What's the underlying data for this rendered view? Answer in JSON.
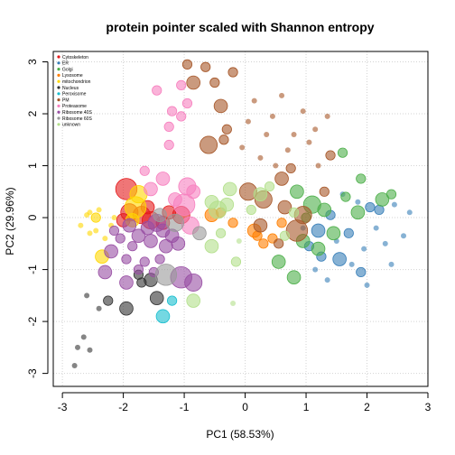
{
  "chart_data": {
    "type": "scatter",
    "title": "protein pointer scaled with Shannon entropy",
    "xlabel": "PC1 (58.53%)",
    "ylabel": "PC2 (29.96%)",
    "xlim": [
      -3.15,
      3.0
    ],
    "ylim": [
      -3.25,
      3.2
    ],
    "xticks": [
      -3,
      -2,
      -1,
      0,
      1,
      2,
      3
    ],
    "yticks": [
      -3,
      -2,
      -1,
      0,
      1,
      2,
      3
    ],
    "xtick_labels": [
      "-3",
      "-2",
      "-1",
      "0",
      "1",
      "2",
      "3"
    ],
    "ytick_labels": [
      "-3",
      "-2",
      "-1",
      "0",
      "1",
      "2",
      "3"
    ],
    "grid": true,
    "legend_position": "top-left",
    "point_opacity": 0.6,
    "series": [
      {
        "name": "Cytoskeleton",
        "color": "#E41A1C",
        "points": [
          {
            "x": -1.95,
            "y": 0.55,
            "s": 5
          },
          {
            "x": -1.7,
            "y": 0.05,
            "s": 4
          },
          {
            "x": -1.55,
            "y": -0.05,
            "s": 4
          },
          {
            "x": -1.9,
            "y": 0.1,
            "s": 4
          },
          {
            "x": -1.05,
            "y": 0.05,
            "s": 4
          },
          {
            "x": -1.35,
            "y": -0.1,
            "s": 3
          },
          {
            "x": -1.6,
            "y": 0.2,
            "s": 3
          },
          {
            "x": -2.0,
            "y": -0.05,
            "s": 3
          },
          {
            "x": -1.25,
            "y": 0.1,
            "s": 3
          }
        ]
      },
      {
        "name": "ER",
        "color": "#377EB8",
        "points": [
          {
            "x": 1.2,
            "y": -0.25,
            "s": 3
          },
          {
            "x": 1.4,
            "y": 0.05,
            "s": 2
          },
          {
            "x": 1.55,
            "y": -0.8,
            "s": 3
          },
          {
            "x": 1.9,
            "y": -1.05,
            "s": 2
          },
          {
            "x": 2.05,
            "y": 0.2,
            "s": 2
          },
          {
            "x": 1.25,
            "y": -0.75,
            "s": 2
          },
          {
            "x": 2.2,
            "y": 0.15,
            "s": 2
          },
          {
            "x": 1.7,
            "y": -0.3,
            "s": 2
          },
          {
            "x": 1.05,
            "y": -0.55,
            "s": 2
          },
          {
            "x": 1.85,
            "y": 0.3,
            "s": 1
          },
          {
            "x": 2.3,
            "y": -0.5,
            "s": 1
          },
          {
            "x": 1.6,
            "y": 0.45,
            "s": 1
          },
          {
            "x": 2.45,
            "y": 0.25,
            "s": 1
          },
          {
            "x": 1.95,
            "y": -0.6,
            "s": 1
          },
          {
            "x": 1.35,
            "y": -1.2,
            "s": 1
          },
          {
            "x": 2.6,
            "y": -0.35,
            "s": 1
          },
          {
            "x": 1.15,
            "y": -1.0,
            "s": 1
          },
          {
            "x": 2.0,
            "y": -1.3,
            "s": 1
          },
          {
            "x": 2.4,
            "y": -0.9,
            "s": 1
          },
          {
            "x": 1.75,
            "y": -0.9,
            "s": 1
          },
          {
            "x": 2.7,
            "y": 0.1,
            "s": 1
          },
          {
            "x": 0.95,
            "y": -0.2,
            "s": 1
          },
          {
            "x": 1.5,
            "y": -0.45,
            "s": 1
          },
          {
            "x": 2.15,
            "y": -0.2,
            "s": 1
          }
        ]
      },
      {
        "name": "Golgi",
        "color": "#4DAF4A",
        "points": [
          {
            "x": 1.1,
            "y": 0.25,
            "s": 4
          },
          {
            "x": 0.85,
            "y": 0.5,
            "s": 3
          },
          {
            "x": 0.55,
            "y": -0.85,
            "s": 3
          },
          {
            "x": 1.2,
            "y": -0.6,
            "s": 3
          },
          {
            "x": 1.45,
            "y": -0.3,
            "s": 3
          },
          {
            "x": 1.85,
            "y": 0.1,
            "s": 3
          },
          {
            "x": 0.8,
            "y": -1.15,
            "s": 3
          },
          {
            "x": 2.25,
            "y": 0.35,
            "s": 3
          },
          {
            "x": 0.95,
            "y": -0.45,
            "s": 3
          },
          {
            "x": 1.3,
            "y": 0.15,
            "s": 3
          },
          {
            "x": 1.65,
            "y": 0.4,
            "s": 2
          },
          {
            "x": 2.4,
            "y": 0.45,
            "s": 2
          },
          {
            "x": 1.0,
            "y": 0.0,
            "s": 2
          },
          {
            "x": 1.6,
            "y": 1.25,
            "s": 2
          },
          {
            "x": 1.9,
            "y": 0.75,
            "s": 2
          }
        ]
      },
      {
        "name": "Lysosome",
        "color": "#FF7F00",
        "points": [
          {
            "x": -0.55,
            "y": 0.05,
            "s": 3
          },
          {
            "x": 0.15,
            "y": -0.25,
            "s": 3
          },
          {
            "x": 0.45,
            "y": -0.4,
            "s": 2
          },
          {
            "x": 0.2,
            "y": -0.35,
            "s": 2
          },
          {
            "x": -0.4,
            "y": 0.1,
            "s": 2
          },
          {
            "x": 0.6,
            "y": -0.1,
            "s": 2
          },
          {
            "x": 0.3,
            "y": -0.5,
            "s": 2
          },
          {
            "x": -0.2,
            "y": -0.1,
            "s": 2
          }
        ]
      },
      {
        "name": "mitochondrion",
        "color": "#FFD700",
        "points": [
          {
            "x": -1.8,
            "y": 0.2,
            "s": 5
          },
          {
            "x": -1.75,
            "y": 0.45,
            "s": 4
          },
          {
            "x": -2.35,
            "y": -0.75,
            "s": 3
          },
          {
            "x": -1.85,
            "y": -0.05,
            "s": 3
          },
          {
            "x": -2.45,
            "y": 0.0,
            "s": 2
          },
          {
            "x": -2.55,
            "y": -0.3,
            "s": 1
          },
          {
            "x": -2.6,
            "y": 0.05,
            "s": 1
          },
          {
            "x": -2.2,
            "y": -0.15,
            "s": 1
          },
          {
            "x": -2.4,
            "y": 0.15,
            "s": 1
          },
          {
            "x": -2.7,
            "y": -0.15,
            "s": 1
          },
          {
            "x": -2.3,
            "y": -0.4,
            "s": 1
          },
          {
            "x": -2.55,
            "y": 0.1,
            "s": 1
          },
          {
            "x": -2.15,
            "y": 0.0,
            "s": 1
          },
          {
            "x": -2.45,
            "y": -0.25,
            "s": 1
          }
        ]
      },
      {
        "name": "Nucleus",
        "color": "#333333",
        "points": [
          {
            "x": -1.95,
            "y": -1.75,
            "s": 3
          },
          {
            "x": -1.45,
            "y": -1.55,
            "s": 3
          },
          {
            "x": -1.55,
            "y": -1.2,
            "s": 3
          },
          {
            "x": -1.7,
            "y": -1.25,
            "s": 2
          },
          {
            "x": -2.25,
            "y": -1.6,
            "s": 2
          },
          {
            "x": -1.75,
            "y": -1.1,
            "s": 2
          },
          {
            "x": -2.6,
            "y": -1.5,
            "s": 1
          },
          {
            "x": -2.8,
            "y": -2.85,
            "s": 1
          },
          {
            "x": -2.75,
            "y": -2.5,
            "s": 1
          },
          {
            "x": -2.4,
            "y": -1.75,
            "s": 1
          },
          {
            "x": -2.55,
            "y": -2.55,
            "s": 1
          },
          {
            "x": -2.65,
            "y": -2.3,
            "s": 1
          }
        ]
      },
      {
        "name": "Peroxisome",
        "color": "#17BECF",
        "points": [
          {
            "x": -1.35,
            "y": -1.9,
            "s": 3
          },
          {
            "x": -1.2,
            "y": -1.6,
            "s": 2
          }
        ]
      },
      {
        "name": "PM",
        "color": "#A65628",
        "points": [
          {
            "x": -0.6,
            "y": 1.4,
            "s": 4
          },
          {
            "x": 0.85,
            "y": -0.25,
            "s": 5
          },
          {
            "x": 0.3,
            "y": 0.35,
            "s": 4
          },
          {
            "x": 0.05,
            "y": 0.5,
            "s": 4
          },
          {
            "x": 0.95,
            "y": 0.05,
            "s": 4
          },
          {
            "x": -0.4,
            "y": 2.15,
            "s": 3
          },
          {
            "x": -0.85,
            "y": 2.6,
            "s": 3
          },
          {
            "x": -0.5,
            "y": 2.6,
            "s": 2
          },
          {
            "x": 0.6,
            "y": 0.75,
            "s": 3
          },
          {
            "x": 0.65,
            "y": 0.2,
            "s": 3
          },
          {
            "x": -0.35,
            "y": 1.5,
            "s": 2
          },
          {
            "x": 0.25,
            "y": -0.15,
            "s": 3
          },
          {
            "x": 0.55,
            "y": -0.5,
            "s": 2
          },
          {
            "x": -0.2,
            "y": 2.8,
            "s": 2
          },
          {
            "x": -0.95,
            "y": 2.95,
            "s": 2
          },
          {
            "x": -0.3,
            "y": 1.7,
            "s": 2
          },
          {
            "x": 1.3,
            "y": 0.5,
            "s": 2
          },
          {
            "x": 0.75,
            "y": 0.95,
            "s": 2
          },
          {
            "x": -0.65,
            "y": 2.9,
            "s": 2
          },
          {
            "x": 1.4,
            "y": 1.2,
            "s": 2
          },
          {
            "x": 0.35,
            "y": 1.6,
            "s": 1
          },
          {
            "x": 0.6,
            "y": 2.35,
            "s": 1
          },
          {
            "x": 0.95,
            "y": 2.05,
            "s": 1
          },
          {
            "x": 0.15,
            "y": 2.25,
            "s": 1
          },
          {
            "x": 0.8,
            "y": 1.6,
            "s": 1
          },
          {
            "x": 1.15,
            "y": 1.7,
            "s": 1
          },
          {
            "x": 0.45,
            "y": 1.95,
            "s": 1
          },
          {
            "x": 1.35,
            "y": 1.95,
            "s": 1
          },
          {
            "x": 0.05,
            "y": 1.85,
            "s": 1
          },
          {
            "x": 0.7,
            "y": 1.3,
            "s": 1
          },
          {
            "x": 1.05,
            "y": 1.45,
            "s": 1
          },
          {
            "x": 0.25,
            "y": 1.15,
            "s": 1
          },
          {
            "x": 1.2,
            "y": 1.0,
            "s": 1
          },
          {
            "x": 0.5,
            "y": 1.0,
            "s": 1
          },
          {
            "x": -0.05,
            "y": 1.35,
            "s": 1
          }
        ]
      },
      {
        "name": "Proteasome",
        "color": "#F781BF",
        "points": [
          {
            "x": -1.0,
            "y": 0.25,
            "s": 5
          },
          {
            "x": -0.9,
            "y": -0.15,
            "s": 4
          },
          {
            "x": -0.95,
            "y": 0.6,
            "s": 4
          },
          {
            "x": -1.35,
            "y": 0.75,
            "s": 3
          },
          {
            "x": -1.55,
            "y": 0.55,
            "s": 3
          },
          {
            "x": -1.2,
            "y": 2.05,
            "s": 2
          },
          {
            "x": -1.05,
            "y": 2.55,
            "s": 2
          },
          {
            "x": -1.25,
            "y": 1.75,
            "s": 2
          },
          {
            "x": -1.65,
            "y": 0.9,
            "s": 2
          },
          {
            "x": -0.85,
            "y": 0.5,
            "s": 3
          },
          {
            "x": -0.95,
            "y": 2.2,
            "s": 2
          },
          {
            "x": -1.15,
            "y": 0.35,
            "s": 3
          },
          {
            "x": -1.45,
            "y": 2.45,
            "s": 2
          },
          {
            "x": -1.25,
            "y": 1.4,
            "s": 2
          },
          {
            "x": -1.05,
            "y": 1.95,
            "s": 2
          }
        ]
      },
      {
        "name": "Ribosome 40S",
        "color": "#984EA3",
        "points": [
          {
            "x": -1.45,
            "y": -0.1,
            "s": 4
          },
          {
            "x": -1.05,
            "y": -1.15,
            "s": 5
          },
          {
            "x": -0.85,
            "y": -1.25,
            "s": 4
          },
          {
            "x": -1.55,
            "y": -0.45,
            "s": 3
          },
          {
            "x": -1.75,
            "y": -0.35,
            "s": 3
          },
          {
            "x": -1.95,
            "y": -1.25,
            "s": 3
          },
          {
            "x": -2.2,
            "y": -0.65,
            "s": 3
          },
          {
            "x": -1.3,
            "y": -0.55,
            "s": 3
          },
          {
            "x": -1.9,
            "y": -0.15,
            "s": 3
          },
          {
            "x": -1.2,
            "y": -0.35,
            "s": 3
          },
          {
            "x": -2.3,
            "y": -1.05,
            "s": 3
          },
          {
            "x": -1.65,
            "y": -0.85,
            "s": 2
          },
          {
            "x": -1.1,
            "y": -0.5,
            "s": 3
          },
          {
            "x": -1.85,
            "y": -0.55,
            "s": 2
          },
          {
            "x": -2.05,
            "y": -0.4,
            "s": 2
          },
          {
            "x": -1.4,
            "y": -0.8,
            "s": 2
          },
          {
            "x": -1.6,
            "y": -0.2,
            "s": 3
          },
          {
            "x": -1.75,
            "y": -1.0,
            "s": 2
          },
          {
            "x": -1.95,
            "y": -0.8,
            "s": 2
          },
          {
            "x": -2.15,
            "y": -0.25,
            "s": 2
          },
          {
            "x": -1.5,
            "y": -1.05,
            "s": 2
          },
          {
            "x": -1.35,
            "y": -0.25,
            "s": 3
          }
        ]
      },
      {
        "name": "Ribosome 60S",
        "color": "#999999",
        "points": [
          {
            "x": -1.3,
            "y": -1.1,
            "s": 5
          },
          {
            "x": -1.15,
            "y": -0.1,
            "s": 4
          },
          {
            "x": -0.75,
            "y": -0.3,
            "s": 3
          },
          {
            "x": -1.4,
            "y": 0.05,
            "s": 3
          }
        ]
      },
      {
        "name": "unknown",
        "color": "#B2DF8A",
        "points": [
          {
            "x": -0.45,
            "y": 0.15,
            "s": 4
          },
          {
            "x": -0.25,
            "y": 0.55,
            "s": 3
          },
          {
            "x": -0.3,
            "y": 0.25,
            "s": 3
          },
          {
            "x": -0.55,
            "y": -0.55,
            "s": 3
          },
          {
            "x": -0.55,
            "y": 0.3,
            "s": 3
          },
          {
            "x": -0.85,
            "y": -1.6,
            "s": 3
          },
          {
            "x": 0.25,
            "y": 0.45,
            "s": 3
          },
          {
            "x": 0.1,
            "y": 0.15,
            "s": 2
          },
          {
            "x": -0.15,
            "y": -0.85,
            "s": 2
          },
          {
            "x": 0.65,
            "y": -0.35,
            "s": 2
          },
          {
            "x": 0.4,
            "y": 0.6,
            "s": 2
          },
          {
            "x": -0.4,
            "y": -0.3,
            "s": 2
          },
          {
            "x": 0.8,
            "y": 0.1,
            "s": 2
          },
          {
            "x": -0.2,
            "y": -1.65,
            "s": 1
          },
          {
            "x": -0.1,
            "y": -0.45,
            "s": 1
          }
        ]
      }
    ]
  }
}
